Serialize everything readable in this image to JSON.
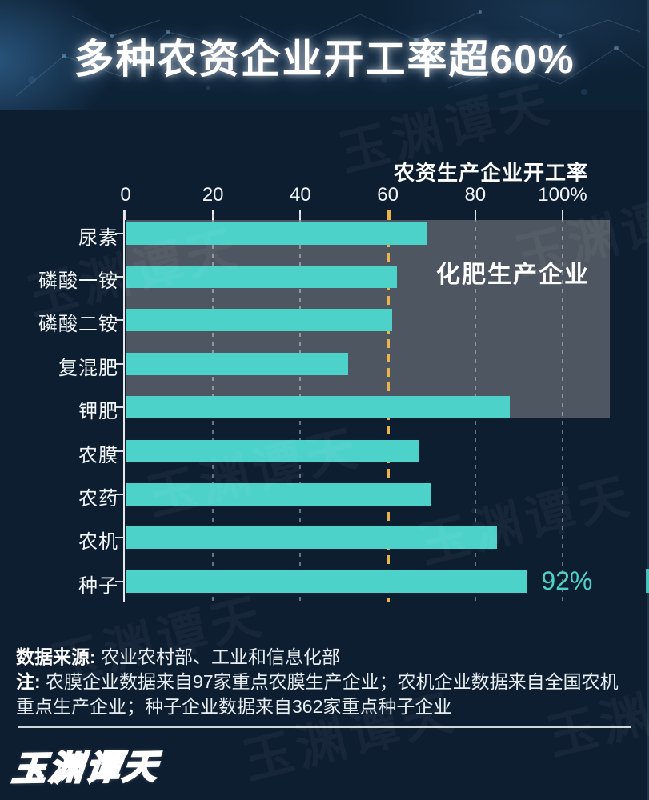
{
  "title": "多种农资企业开工率超60%",
  "chart_data": {
    "type": "bar",
    "orientation": "horizontal",
    "title": "农资生产企业开工率",
    "categories": [
      "尿素",
      "磷酸一铵",
      "磷酸二铵",
      "复混肥",
      "钾肥",
      "农膜",
      "农药",
      "农机",
      "种子"
    ],
    "values": [
      69,
      62,
      61,
      51,
      88,
      67,
      70,
      85,
      92
    ],
    "unit": "%",
    "xlim": [
      0,
      100
    ],
    "x_ticks": [
      0,
      20,
      40,
      60,
      80,
      100
    ],
    "x_tick_labels": [
      "0",
      "20",
      "40",
      "60",
      "80",
      "100%"
    ],
    "grid": "vertical-dashed",
    "legend_position": "none",
    "reference_line": {
      "value": 60,
      "style": "dashed",
      "color": "#e9b44c"
    },
    "group_highlight": {
      "label": "化肥生产企业",
      "first_category": "尿素",
      "last_category": "钾肥"
    },
    "data_labels": [
      {
        "category": "种子",
        "text": "92%"
      }
    ],
    "bar_color": "#4dd2ca"
  },
  "footer": {
    "source_label": "数据来源:",
    "source_text": " 农业农村部、工业和信息化部",
    "note_label": "注:",
    "note_lines": [
      " 农膜企业数据来自97家重点农膜生产企业；农机企业数据来自全国农机",
      "重点生产企业；种子企业数据来自362家重点种子企业"
    ],
    "logo_text": "玉渊谭天",
    "watermark_text": "玉渊谭天"
  },
  "colors": {
    "background": "#0d1e31",
    "bar": "#4dd2ca",
    "highlight_box": "#4e5761",
    "reference_line": "#e9b44c",
    "value_label": "#4fd1c7",
    "text": "#ffffff",
    "separator": "#dfe7ec"
  }
}
